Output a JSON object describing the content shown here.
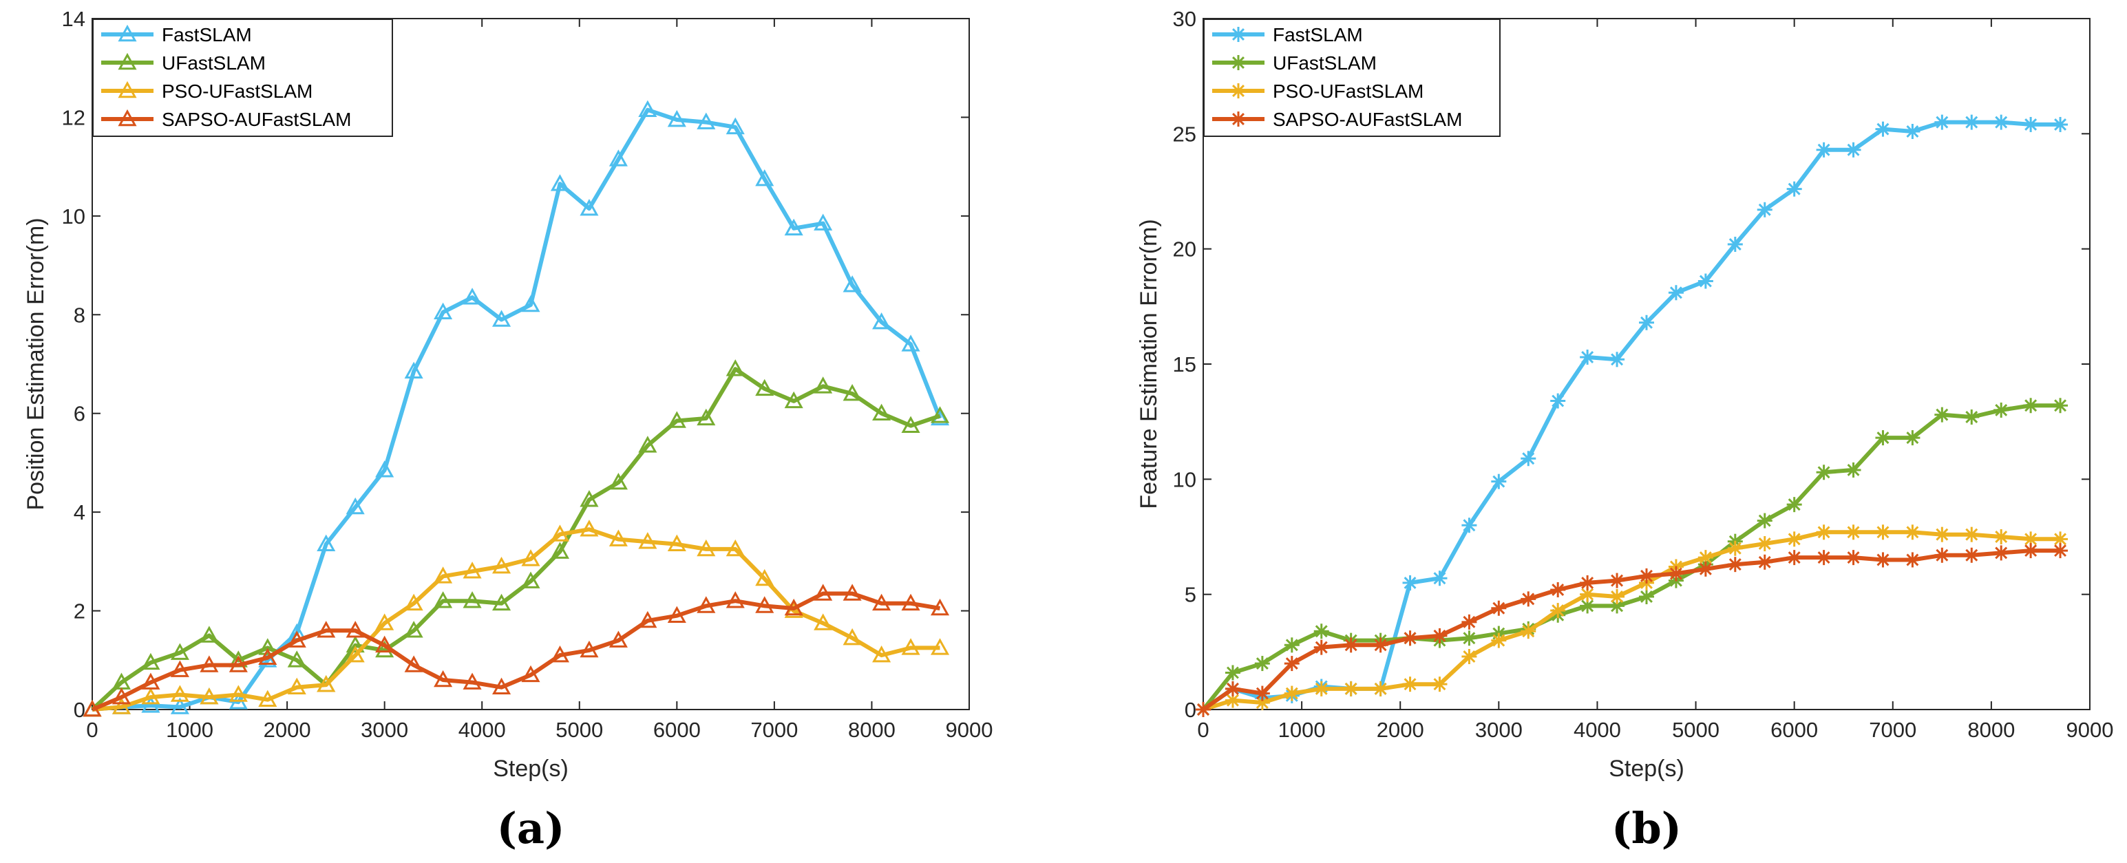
{
  "chart_data": [
    {
      "type": "line",
      "panel_label": "(a)",
      "title": "",
      "xlabel": "Step(s)",
      "ylabel": "Position Estimation Error(m)",
      "xlim": [
        0,
        9000
      ],
      "ylim": [
        0,
        14
      ],
      "xticks": [
        0,
        1000,
        2000,
        3000,
        4000,
        5000,
        6000,
        7000,
        8000,
        9000
      ],
      "yticks": [
        0,
        2,
        4,
        6,
        8,
        10,
        12,
        14
      ],
      "marker": "triangle",
      "legend_position": "top-left",
      "x": [
        0,
        300,
        600,
        900,
        1200,
        1500,
        1800,
        2100,
        2400,
        2700,
        3000,
        3300,
        3600,
        3900,
        4200,
        4500,
        4800,
        5100,
        5400,
        5700,
        6000,
        6300,
        6600,
        6900,
        7200,
        7500,
        7800,
        8100,
        8400,
        8700
      ],
      "series": [
        {
          "name": "FastSLAM",
          "color": "#4DBEEE",
          "values": [
            0,
            0.05,
            0.08,
            0.05,
            0.25,
            0.15,
            1.0,
            1.55,
            3.35,
            4.1,
            4.85,
            6.85,
            8.05,
            8.35,
            7.9,
            8.2,
            10.65,
            10.15,
            11.15,
            12.15,
            11.95,
            11.9,
            11.8,
            10.75,
            9.75,
            9.85,
            8.6,
            7.85,
            7.4,
            5.9
          ]
        },
        {
          "name": "UFastSLAM",
          "color": "#77AC30",
          "values": [
            0,
            0.55,
            0.95,
            1.15,
            1.5,
            1.0,
            1.25,
            1.0,
            0.5,
            1.3,
            1.2,
            1.6,
            2.2,
            2.2,
            2.15,
            2.6,
            3.2,
            4.25,
            4.6,
            5.35,
            5.85,
            5.9,
            6.9,
            6.5,
            6.25,
            6.55,
            6.4,
            6.0,
            5.75,
            5.95
          ]
        },
        {
          "name": "PSO-UFastSLAM",
          "color": "#EDB120",
          "values": [
            0,
            0.05,
            0.25,
            0.3,
            0.25,
            0.3,
            0.2,
            0.45,
            0.5,
            1.1,
            1.75,
            2.15,
            2.7,
            2.8,
            2.9,
            3.05,
            3.55,
            3.65,
            3.45,
            3.4,
            3.35,
            3.25,
            3.25,
            2.65,
            2.0,
            1.75,
            1.45,
            1.1,
            1.25,
            1.25
          ]
        },
        {
          "name": "SAPSO-AUFastSLAM",
          "color": "#D95319",
          "values": [
            0,
            0.25,
            0.55,
            0.8,
            0.9,
            0.9,
            1.05,
            1.4,
            1.6,
            1.6,
            1.3,
            0.9,
            0.6,
            0.55,
            0.45,
            0.7,
            1.1,
            1.2,
            1.4,
            1.8,
            1.9,
            2.1,
            2.2,
            2.1,
            2.05,
            2.35,
            2.35,
            2.15,
            2.15,
            2.05
          ]
        }
      ]
    },
    {
      "type": "line",
      "panel_label": "(b)",
      "title": "",
      "xlabel": "Step(s)",
      "ylabel": "Feature Estimation Error(m)",
      "xlim": [
        0,
        9000
      ],
      "ylim": [
        0,
        30
      ],
      "xticks": [
        0,
        1000,
        2000,
        3000,
        4000,
        5000,
        6000,
        7000,
        8000,
        9000
      ],
      "yticks": [
        0,
        5,
        10,
        15,
        20,
        25,
        30
      ],
      "marker": "asterisk",
      "legend_position": "top-left",
      "x": [
        0,
        300,
        600,
        900,
        1200,
        1500,
        1800,
        2100,
        2400,
        2700,
        3000,
        3300,
        3600,
        3900,
        4200,
        4500,
        4800,
        5100,
        5400,
        5700,
        6000,
        6300,
        6600,
        6900,
        7200,
        7500,
        7800,
        8100,
        8400,
        8700
      ],
      "series": [
        {
          "name": "FastSLAM",
          "color": "#4DBEEE",
          "values": [
            0,
            0.9,
            0.5,
            0.6,
            1.0,
            0.9,
            0.9,
            5.5,
            5.7,
            8.0,
            9.9,
            10.9,
            13.4,
            15.3,
            15.2,
            16.8,
            18.1,
            18.6,
            20.2,
            21.7,
            22.6,
            24.3,
            24.3,
            25.2,
            25.1,
            25.5,
            25.5,
            25.5,
            25.4,
            25.4
          ]
        },
        {
          "name": "UFastSLAM",
          "color": "#77AC30",
          "values": [
            0,
            1.6,
            2.0,
            2.8,
            3.4,
            3.0,
            3.0,
            3.1,
            3.0,
            3.1,
            3.3,
            3.5,
            4.1,
            4.5,
            4.5,
            4.9,
            5.6,
            6.3,
            7.3,
            8.2,
            8.9,
            10.3,
            10.4,
            11.8,
            11.8,
            12.8,
            12.7,
            13.0,
            13.2,
            13.2
          ]
        },
        {
          "name": "PSO-UFastSLAM",
          "color": "#EDB120",
          "values": [
            0,
            0.4,
            0.3,
            0.7,
            0.9,
            0.9,
            0.9,
            1.1,
            1.1,
            2.3,
            3.0,
            3.4,
            4.3,
            5.0,
            4.9,
            5.5,
            6.2,
            6.6,
            7.0,
            7.2,
            7.4,
            7.7,
            7.7,
            7.7,
            7.7,
            7.6,
            7.6,
            7.5,
            7.4,
            7.4
          ]
        },
        {
          "name": "SAPSO-AUFastSLAM",
          "color": "#D95319",
          "values": [
            0,
            0.9,
            0.7,
            2.0,
            2.7,
            2.8,
            2.8,
            3.1,
            3.2,
            3.8,
            4.4,
            4.8,
            5.2,
            5.5,
            5.6,
            5.8,
            5.9,
            6.1,
            6.3,
            6.4,
            6.6,
            6.6,
            6.6,
            6.5,
            6.5,
            6.7,
            6.7,
            6.8,
            6.9,
            6.9
          ]
        }
      ]
    }
  ]
}
